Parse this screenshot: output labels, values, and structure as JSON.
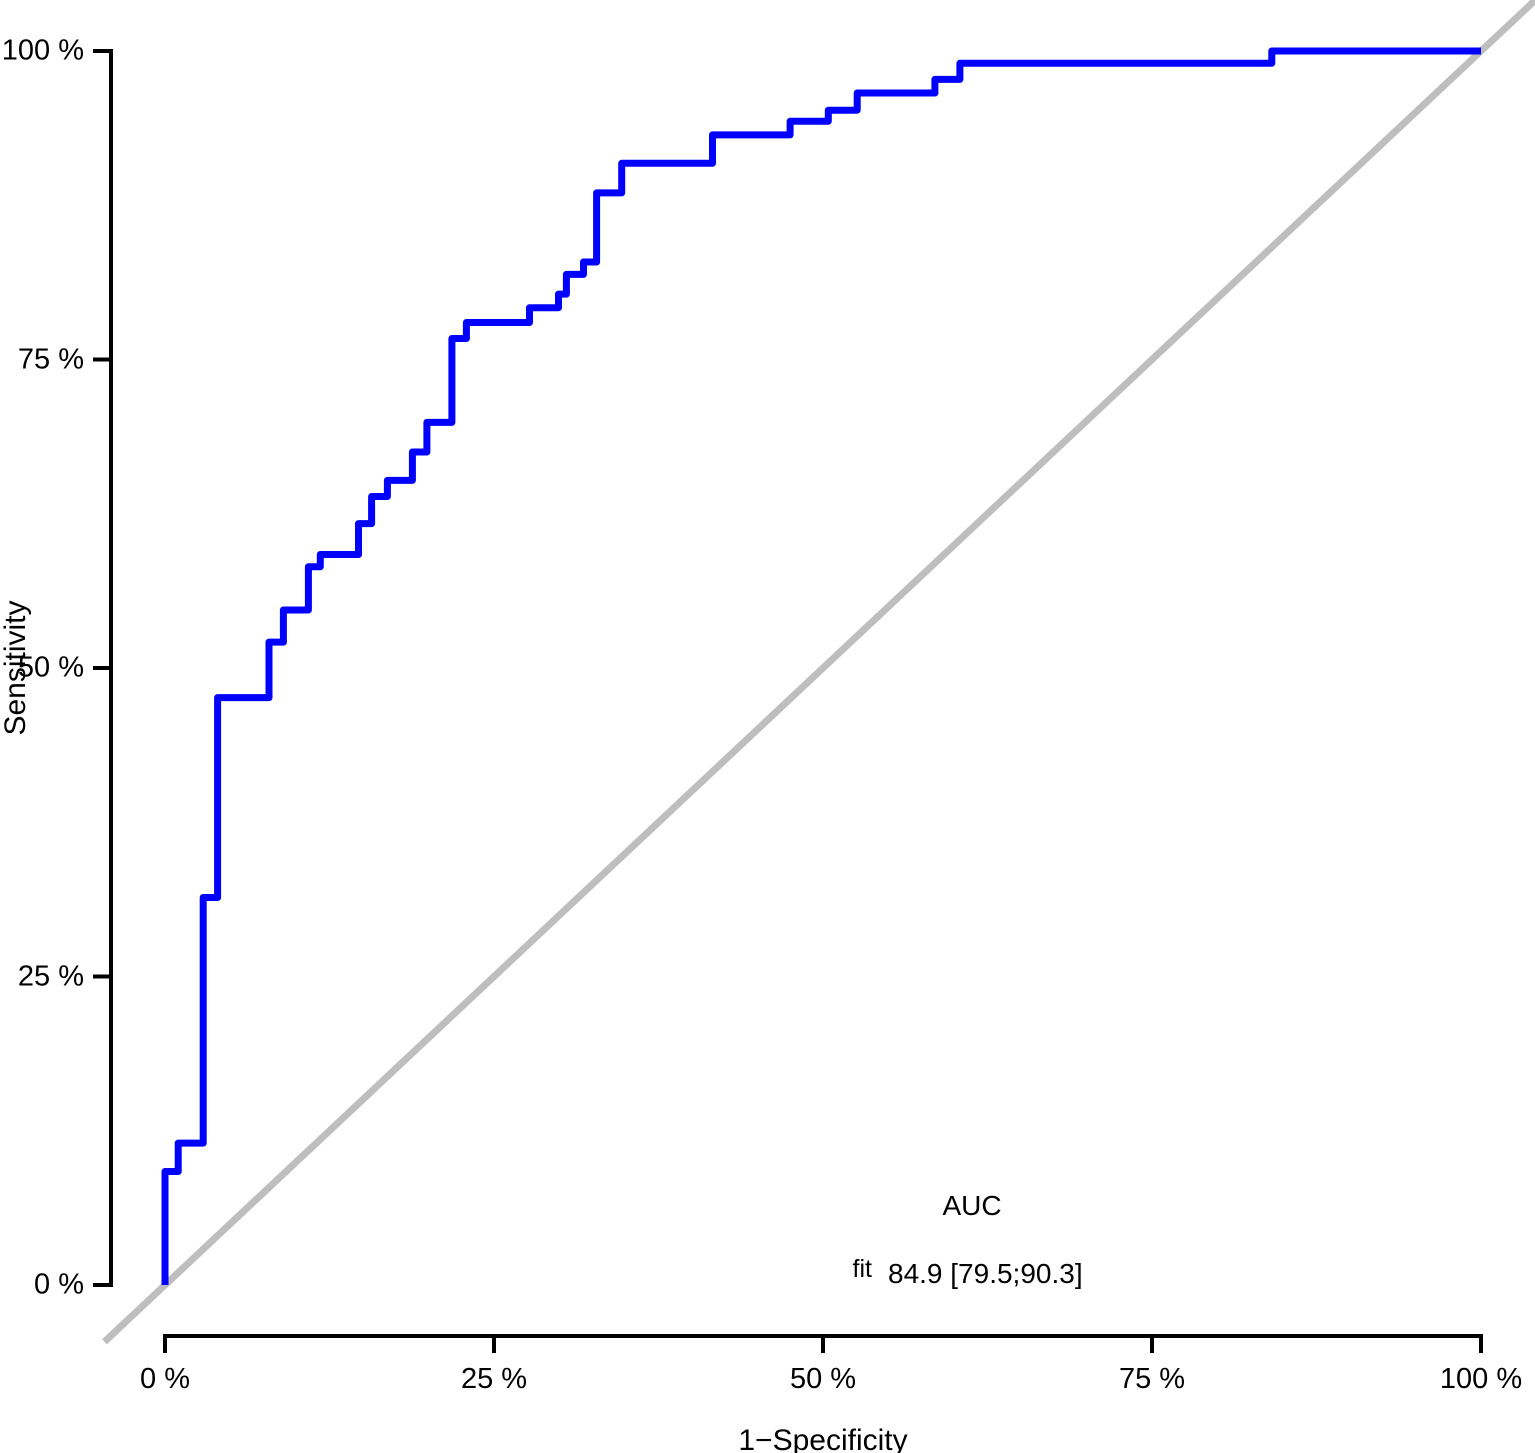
{
  "colors": {
    "roc_line": "#0000FF",
    "diagonal_line": "#BEBEBE",
    "axis": "#000000",
    "text": "#000000",
    "background": "#FFFFFF"
  },
  "chart_data": {
    "type": "line",
    "subtype": "roc-step-curve",
    "title": "",
    "xlabel": "1−Specificity",
    "ylabel": "Sensitivity",
    "xlim": [
      0,
      100
    ],
    "ylim": [
      0,
      100
    ],
    "grid": "off",
    "x_ticks": [
      {
        "value": 0,
        "label": "0 %"
      },
      {
        "value": 25,
        "label": "25 %"
      },
      {
        "value": 50,
        "label": "50 %"
      },
      {
        "value": 75,
        "label": "75 %"
      },
      {
        "value": 100,
        "label": "100 %"
      }
    ],
    "y_ticks": [
      {
        "value": 0,
        "label": "0 %"
      },
      {
        "value": 25,
        "label": "25 %"
      },
      {
        "value": 50,
        "label": "50 %"
      },
      {
        "value": 75,
        "label": "75 %"
      },
      {
        "value": 100,
        "label": "100 %"
      }
    ],
    "series": [
      {
        "name": "fit",
        "color": "#0000FF",
        "points": [
          [
            0,
            0
          ],
          [
            0,
            9.2
          ],
          [
            1,
            9.2
          ],
          [
            1,
            11.5
          ],
          [
            2.9,
            11.5
          ],
          [
            2.9,
            31.4
          ],
          [
            4,
            31.4
          ],
          [
            4,
            47.6
          ],
          [
            7.9,
            47.6
          ],
          [
            7.9,
            52.1
          ],
          [
            9,
            52.1
          ],
          [
            9,
            54.7
          ],
          [
            10.9,
            54.7
          ],
          [
            10.9,
            58.2
          ],
          [
            11.8,
            58.2
          ],
          [
            11.8,
            59.2
          ],
          [
            14.7,
            59.2
          ],
          [
            14.7,
            61.7
          ],
          [
            15.7,
            61.7
          ],
          [
            15.7,
            63.9
          ],
          [
            16.9,
            63.9
          ],
          [
            16.9,
            65.2
          ],
          [
            18.8,
            65.2
          ],
          [
            18.8,
            67.5
          ],
          [
            19.9,
            67.5
          ],
          [
            19.9,
            69.9
          ],
          [
            21.8,
            69.9
          ],
          [
            21.8,
            76.7
          ],
          [
            22.9,
            76.7
          ],
          [
            22.9,
            78
          ],
          [
            27.7,
            78
          ],
          [
            27.7,
            79.2
          ],
          [
            29.9,
            79.2
          ],
          [
            29.9,
            80.3
          ],
          [
            30.5,
            80.3
          ],
          [
            30.5,
            81.9
          ],
          [
            31.8,
            81.9
          ],
          [
            31.8,
            82.9
          ],
          [
            32.8,
            82.9
          ],
          [
            32.8,
            88.5
          ],
          [
            34.7,
            88.5
          ],
          [
            34.7,
            90.9
          ],
          [
            41.6,
            90.9
          ],
          [
            41.6,
            93.2
          ],
          [
            47.5,
            93.2
          ],
          [
            47.5,
            94.3
          ],
          [
            50.4,
            94.3
          ],
          [
            50.4,
            95.2
          ],
          [
            52.6,
            95.2
          ],
          [
            52.6,
            96.6
          ],
          [
            58.5,
            96.6
          ],
          [
            58.5,
            97.7
          ],
          [
            60.4,
            97.7
          ],
          [
            60.4,
            99
          ],
          [
            84.1,
            99
          ],
          [
            84.1,
            100
          ],
          [
            100,
            100
          ]
        ]
      }
    ],
    "reference_diagonal": {
      "color": "#BEBEBE",
      "from": [
        0,
        0
      ],
      "to": [
        100,
        100
      ],
      "extends_beyond_axes": true
    },
    "annotation": {
      "header": "AUC",
      "row_label": "fit",
      "value": "84.9 [79.5;90.3]"
    }
  }
}
